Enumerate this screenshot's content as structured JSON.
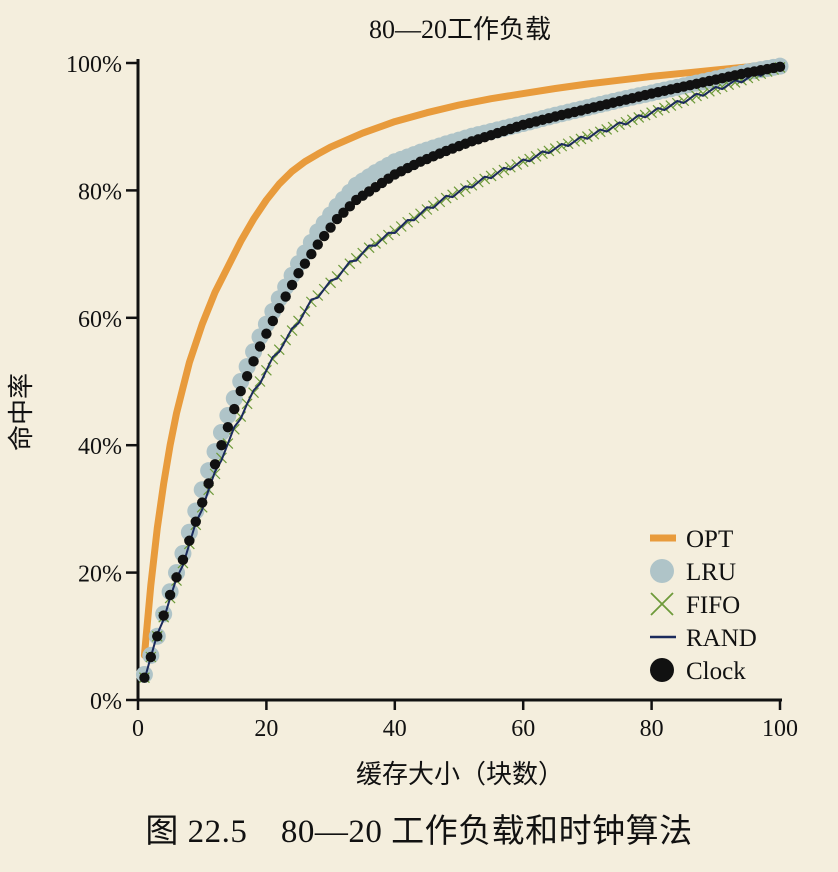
{
  "caption": "图 22.5　80—20 工作负载和时钟算法",
  "chart_data": {
    "type": "line",
    "title": "80—20工作负载",
    "xlabel": "缓存大小（块数）",
    "ylabel": "命中率",
    "xlim": [
      0,
      100
    ],
    "ylim": [
      0,
      100
    ],
    "xticks": [
      0,
      20,
      40,
      60,
      80,
      100
    ],
    "yticks": [
      0,
      20,
      40,
      60,
      80,
      100
    ],
    "ytick_labels": [
      "0%",
      "20%",
      "40%",
      "60%",
      "80%",
      "100%"
    ],
    "legend_position": "bottom-right",
    "grid": false,
    "series": [
      {
        "name": "OPT",
        "marker": "line",
        "color": "#E89B3C",
        "x": [
          1,
          2,
          3,
          4,
          5,
          6,
          7,
          8,
          10,
          12,
          14,
          16,
          18,
          20,
          22,
          24,
          26,
          28,
          30,
          35,
          40,
          45,
          50,
          55,
          60,
          65,
          70,
          75,
          80,
          85,
          90,
          95,
          100
        ],
        "y": [
          7,
          18,
          27,
          34,
          40,
          45,
          49,
          53,
          59,
          64,
          68,
          72,
          75.5,
          78.5,
          81,
          83,
          84.5,
          85.7,
          86.8,
          89,
          90.8,
          92.2,
          93.4,
          94.4,
          95.2,
          96,
          96.7,
          97.3,
          97.9,
          98.4,
          98.9,
          99.4,
          100
        ]
      },
      {
        "name": "LRU",
        "marker": "circle",
        "color": "#AFC4C8",
        "x": [
          1,
          3,
          5,
          7,
          10,
          13,
          16,
          19,
          22,
          25,
          28,
          31,
          34,
          37,
          40,
          44,
          48,
          52,
          56,
          60,
          65,
          70,
          75,
          80,
          85,
          90,
          95,
          100
        ],
        "y": [
          4,
          10,
          17,
          23,
          33,
          42,
          50,
          57,
          63,
          68.5,
          73.5,
          77.5,
          80.8,
          82.8,
          84.5,
          86,
          87.3,
          88.5,
          89.5,
          90.5,
          91.8,
          93,
          94.2,
          95.3,
          96.4,
          97.5,
          98.6,
          99.5
        ]
      },
      {
        "name": "FIFO",
        "marker": "x",
        "color": "#6E9A3A",
        "x": [
          1,
          3,
          5,
          7,
          9,
          11,
          13,
          15,
          17,
          19,
          21,
          23,
          25,
          27,
          30,
          33,
          36,
          39,
          42,
          45,
          48,
          51,
          54,
          57,
          60,
          64,
          68,
          72,
          76,
          80,
          84,
          88,
          92,
          96,
          100
        ],
        "y": [
          3.5,
          10,
          16,
          21.5,
          27.5,
          33,
          38,
          42.5,
          46.5,
          50,
          53.5,
          56.5,
          59.5,
          62.5,
          65.5,
          68.5,
          71,
          73,
          75,
          77,
          78.8,
          80.3,
          81.8,
          83.2,
          84.5,
          86.2,
          87.7,
          89.2,
          90.7,
          92.2,
          93.7,
          95.2,
          96.6,
          98,
          99.3
        ]
      },
      {
        "name": "RAND",
        "marker": "line",
        "color": "#1B2A5C",
        "x": [
          1,
          3,
          5,
          7,
          9,
          11,
          13,
          15,
          17,
          19,
          21,
          23,
          25,
          27,
          30,
          33,
          36,
          39,
          42,
          45,
          48,
          51,
          54,
          57,
          60,
          64,
          68,
          72,
          76,
          80,
          84,
          88,
          92,
          96,
          100
        ],
        "y": [
          3.5,
          10,
          16,
          21.5,
          27.5,
          33,
          38,
          42.5,
          46.5,
          50,
          53.5,
          56.5,
          59.5,
          62.5,
          65.5,
          68.5,
          71,
          73,
          75,
          77,
          78.8,
          80.3,
          81.8,
          83.2,
          84.5,
          86.2,
          87.7,
          89.2,
          90.7,
          92.2,
          93.7,
          95.2,
          96.6,
          98,
          99.3
        ]
      },
      {
        "name": "Clock",
        "marker": "circle",
        "color": "#111111",
        "x": [
          1,
          3,
          5,
          7,
          10,
          13,
          16,
          19,
          22,
          25,
          28,
          31,
          34,
          37,
          40,
          44,
          48,
          52,
          56,
          60,
          65,
          70,
          75,
          80,
          85,
          90,
          95,
          100
        ],
        "y": [
          3.5,
          10,
          16.5,
          22,
          31,
          40,
          48.5,
          55.5,
          61.5,
          67,
          71.5,
          75.5,
          78.5,
          80.5,
          82.5,
          84.5,
          86.2,
          87.7,
          89,
          90.3,
          91.6,
          92.8,
          94,
          95.2,
          96.3,
          97.4,
          98.5,
          99.4
        ]
      }
    ]
  }
}
